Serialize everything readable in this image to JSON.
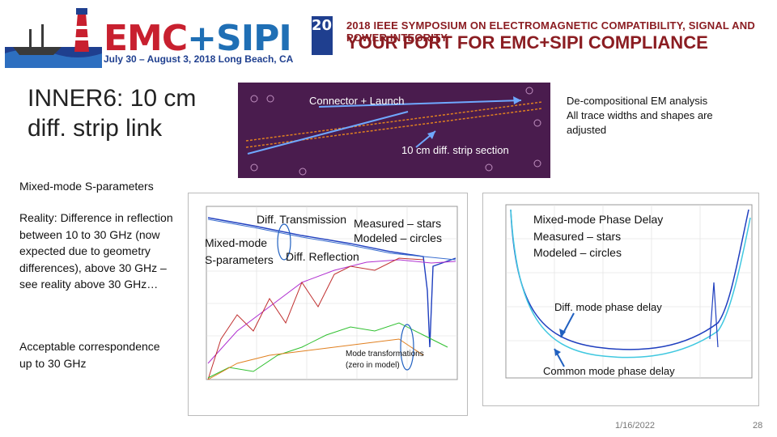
{
  "banner": {
    "logo_emc": "EMC",
    "logo_plus": "+SIPI",
    "logo_year": "2018",
    "logo_dates": "July 30 – August 3, 2018 Long Beach, CA",
    "tagline_top": "2018 IEEE SYMPOSIUM ON ELECTROMAGNETIC COMPATIBILITY, SIGNAL AND POWER INTEGRITY",
    "tagline_main": "YOUR PORT FOR EMC+SIPI COMPLIANCE"
  },
  "slide": {
    "title": "INNER6: 10 cm diff. strip link",
    "section": "Mixed-mode S-parameters",
    "body1": "Reality: Difference in reflection between 10 to 30 GHz (now expected due to geometry differences), above 30 GHz – see reality above 30 GHz…",
    "body2": "Acceptable correspondence up to 30 GHz",
    "note_line1": "De-compositional EM analysis",
    "note_line2": "All trace widths and shapes are adjusted",
    "pcb_label_connector": "Connector + Launch",
    "pcb_label_strip": "10 cm diff. strip section",
    "left_plot": {
      "diff_transmission": "Diff. Transmission",
      "measured": "Measured – stars",
      "modeled": "Modeled – circles",
      "mixed_mode": "Mixed-mode",
      "s_parameters": "S-parameters",
      "diff_reflection": "Diff. Reflection",
      "mode_transformations": "Mode transformations",
      "zero_in_model": "(zero in model)"
    },
    "right_plot": {
      "title": "Mixed-mode Phase Delay",
      "measured": "Measured – stars",
      "modeled": "Modeled – circles",
      "diff_mode_delay": "Diff. mode phase delay",
      "common_mode_delay": "Common mode phase delay"
    },
    "footer_date": "1/16/2022",
    "footer_page": "28"
  }
}
